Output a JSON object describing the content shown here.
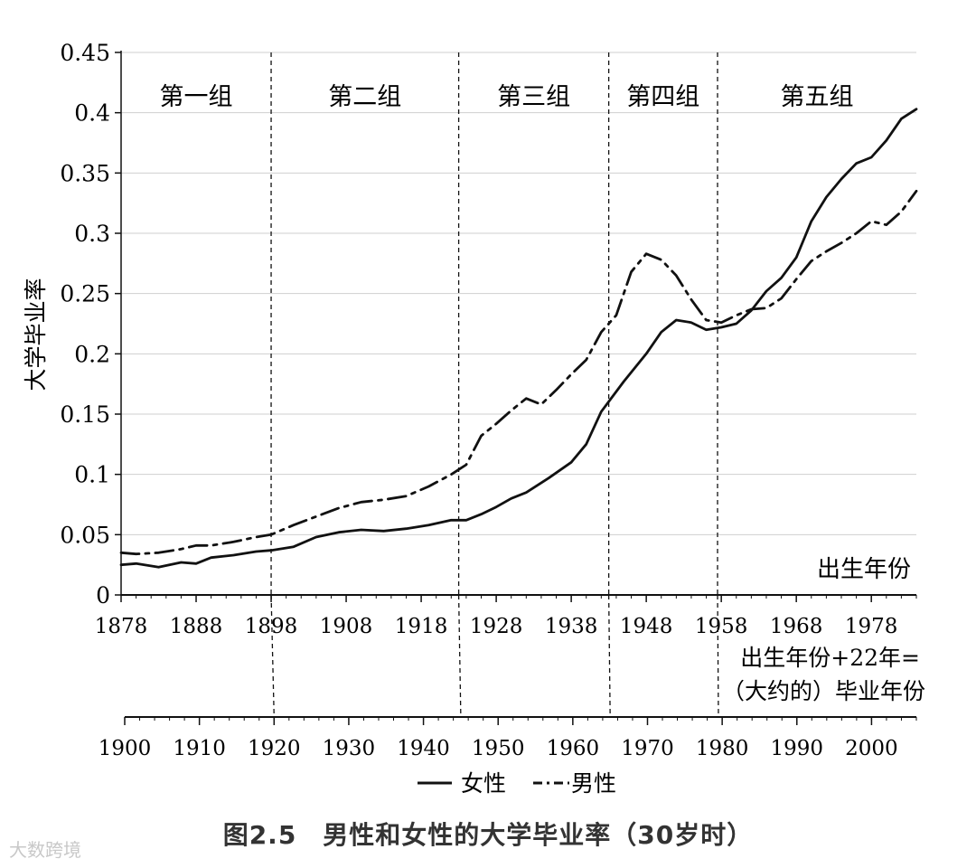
{
  "chart_data": {
    "type": "line",
    "ylabel": "大学毕业率",
    "x_axis_title": "出生年份",
    "x2_axis_title_line1": "出生年份+22年=",
    "x2_axis_title_line2": "（大约的）毕业年份",
    "ylim": [
      0,
      0.45
    ],
    "xlim": [
      1878,
      1984
    ],
    "y_ticks": [
      "0",
      "0.05",
      "0.1",
      "0.15",
      "0.2",
      "0.25",
      "0.3",
      "0.35",
      "0.4",
      "0.45"
    ],
    "x_ticks": [
      "1878",
      "1888",
      "1898",
      "1908",
      "1918",
      "1928",
      "1938",
      "1948",
      "1958",
      "1968",
      "1978"
    ],
    "x2_ticks": [
      "1900",
      "1910",
      "1920",
      "1930",
      "1940",
      "1950",
      "1960",
      "1970",
      "1980",
      "1990",
      "2000"
    ],
    "grid": true,
    "legend": "bottom",
    "groups": [
      {
        "label": "第一组",
        "start": 1878,
        "end": 1898
      },
      {
        "label": "第二组",
        "start": 1898,
        "end": 1923
      },
      {
        "label": "第三组",
        "start": 1923,
        "end": 1943
      },
      {
        "label": "第四组",
        "start": 1943,
        "end": 1957.5
      },
      {
        "label": "第五组",
        "start": 1957.5,
        "end": 1984
      }
    ],
    "series": [
      {
        "name": "女性",
        "style": "solid",
        "color": "#111111",
        "x": [
          1878,
          1880,
          1883,
          1886,
          1888,
          1890,
          1893,
          1896,
          1898,
          1901,
          1904,
          1907,
          1910,
          1913,
          1916,
          1919,
          1922,
          1924,
          1926,
          1928,
          1930,
          1932,
          1935,
          1938,
          1940,
          1942,
          1945,
          1948,
          1950,
          1952,
          1954,
          1956,
          1958,
          1960,
          1962,
          1964,
          1966,
          1968,
          1970,
          1972,
          1974,
          1976,
          1978,
          1980,
          1982,
          1984
        ],
        "y": [
          0.025,
          0.026,
          0.023,
          0.027,
          0.026,
          0.031,
          0.033,
          0.036,
          0.037,
          0.04,
          0.048,
          0.052,
          0.054,
          0.053,
          0.055,
          0.058,
          0.062,
          0.062,
          0.067,
          0.073,
          0.08,
          0.085,
          0.097,
          0.11,
          0.125,
          0.152,
          0.177,
          0.2,
          0.218,
          0.228,
          0.226,
          0.22,
          0.222,
          0.225,
          0.236,
          0.252,
          0.263,
          0.28,
          0.31,
          0.33,
          0.345,
          0.358,
          0.363,
          0.377,
          0.395,
          0.403
        ]
      },
      {
        "name": "男性",
        "style": "dash-dot",
        "color": "#111111",
        "x": [
          1878,
          1880,
          1883,
          1886,
          1888,
          1890,
          1893,
          1896,
          1898,
          1901,
          1904,
          1907,
          1910,
          1913,
          1916,
          1919,
          1922,
          1924,
          1926,
          1928,
          1930,
          1932,
          1934,
          1936,
          1938,
          1940,
          1942,
          1944,
          1946,
          1948,
          1950,
          1952,
          1954,
          1956,
          1958,
          1960,
          1962,
          1964,
          1966,
          1968,
          1970,
          1972,
          1974,
          1976,
          1978,
          1980,
          1982,
          1984
        ],
        "y": [
          0.035,
          0.034,
          0.035,
          0.038,
          0.041,
          0.041,
          0.044,
          0.048,
          0.05,
          0.058,
          0.065,
          0.072,
          0.077,
          0.079,
          0.082,
          0.09,
          0.1,
          0.108,
          0.132,
          0.142,
          0.153,
          0.163,
          0.158,
          0.17,
          0.183,
          0.195,
          0.218,
          0.232,
          0.268,
          0.283,
          0.278,
          0.265,
          0.245,
          0.228,
          0.226,
          0.232,
          0.237,
          0.238,
          0.246,
          0.262,
          0.277,
          0.285,
          0.292,
          0.3,
          0.31,
          0.307,
          0.318,
          0.335
        ]
      }
    ]
  },
  "figure_caption": "图2.5　男性和女性的大学毕业率（30岁时）",
  "watermark": "大数跨境"
}
